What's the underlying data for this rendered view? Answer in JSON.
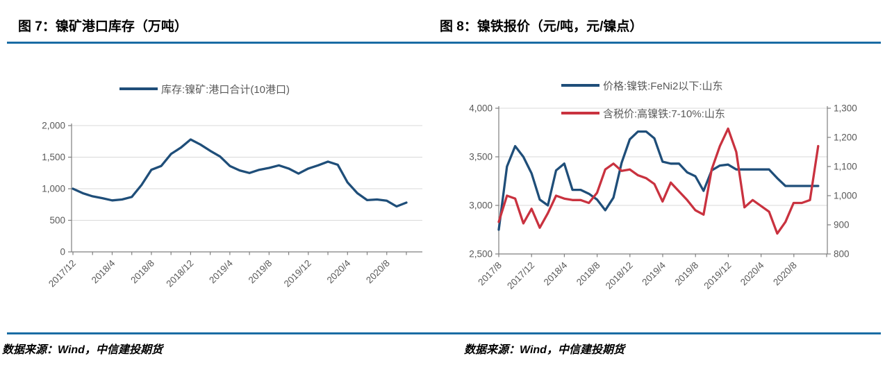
{
  "panels": [
    {
      "title": "图 7：镍矿港口库存（万吨）",
      "source": "数据来源：Wind，中信建投期货"
    },
    {
      "title": "图 8：镍铁报价（元/吨，元/镍点）",
      "source": "数据来源：Wind，中信建投期货"
    }
  ],
  "colors": {
    "rule_blue": "#1A6CA4",
    "series_blue": "#1F4E79",
    "series_red": "#C9323F",
    "grid": "#D9D9D9",
    "axis": "#7F7F7F",
    "tick_text": "#595959"
  },
  "chart_data": [
    {
      "type": "line",
      "title": "图 7：镍矿港口库存（万吨）",
      "unit": "万吨",
      "grid": true,
      "legend_position": "top",
      "x_tick_labels": [
        "2017/12",
        "2018/4",
        "2018/8",
        "2018/12",
        "2019/4",
        "2019/8",
        "2019/12",
        "2020/4",
        "2020/8"
      ],
      "y_axis": {
        "min": 0,
        "max": 2000,
        "step": 500,
        "tick_labels": [
          "0",
          "500",
          "1,000",
          "1,500",
          "2,000"
        ]
      },
      "x": [
        "2017/12",
        "2018/1",
        "2018/2",
        "2018/3",
        "2018/4",
        "2018/5",
        "2018/6",
        "2018/7",
        "2018/8",
        "2018/9",
        "2018/10",
        "2018/11",
        "2018/12",
        "2019/1",
        "2019/2",
        "2019/3",
        "2019/4",
        "2019/5",
        "2019/6",
        "2019/7",
        "2019/8",
        "2019/9",
        "2019/10",
        "2019/11",
        "2019/12",
        "2020/1",
        "2020/2",
        "2020/3",
        "2020/4",
        "2020/5",
        "2020/6",
        "2020/7",
        "2020/8",
        "2020/9",
        "2020/10"
      ],
      "series": [
        {
          "name": "库存:镍矿:港口合计(10港口)",
          "color": "#1F4E79",
          "axis": "left",
          "values": [
            1000,
            930,
            880,
            850,
            815,
            830,
            870,
            1060,
            1300,
            1360,
            1550,
            1650,
            1780,
            1700,
            1600,
            1510,
            1360,
            1290,
            1250,
            1300,
            1330,
            1370,
            1320,
            1240,
            1320,
            1370,
            1430,
            1380,
            1100,
            930,
            820,
            830,
            810,
            720,
            780
          ]
        }
      ]
    },
    {
      "type": "line",
      "title": "图 8：镍铁报价（元/吨，元/镍点）",
      "unit": "元/吨，元/镍点",
      "grid": true,
      "legend_position": "top",
      "x_tick_labels": [
        "2017/8",
        "2017/12",
        "2018/4",
        "2018/8",
        "2018/12",
        "2019/4",
        "2019/8",
        "2019/12",
        "2020/4",
        "2020/8"
      ],
      "y_axis": {
        "min": 2500,
        "max": 4000,
        "step": 500,
        "tick_labels": [
          "2,500",
          "3,000",
          "3,500",
          "4,000"
        ]
      },
      "y2_axis": {
        "min": 800,
        "max": 1300,
        "step": 100,
        "tick_labels": [
          "800",
          "900",
          "1,000",
          "1,100",
          "1,200",
          "1,300"
        ]
      },
      "x": [
        "2017/8",
        "2017/9",
        "2017/10",
        "2017/11",
        "2017/12",
        "2018/1",
        "2018/2",
        "2018/3",
        "2018/4",
        "2018/5",
        "2018/6",
        "2018/7",
        "2018/8",
        "2018/9",
        "2018/10",
        "2018/11",
        "2018/12",
        "2019/1",
        "2019/2",
        "2019/3",
        "2019/4",
        "2019/5",
        "2019/6",
        "2019/7",
        "2019/8",
        "2019/9",
        "2019/10",
        "2019/11",
        "2019/12",
        "2020/1",
        "2020/2",
        "2020/3",
        "2020/4",
        "2020/5",
        "2020/6",
        "2020/7",
        "2020/8",
        "2020/9",
        "2020/10",
        "2020/11"
      ],
      "series": [
        {
          "name": "价格:镍铁:FeNi2以下:山东",
          "color": "#1F4E79",
          "axis": "left",
          "values": [
            2750,
            3400,
            3610,
            3500,
            3330,
            3060,
            3000,
            3360,
            3430,
            3160,
            3160,
            3120,
            3060,
            2950,
            3080,
            3440,
            3680,
            3760,
            3760,
            3690,
            3450,
            3430,
            3430,
            3340,
            3300,
            3150,
            3360,
            3410,
            3420,
            3370,
            3370,
            3370,
            3370,
            3370,
            3280,
            3200,
            3200,
            3200,
            3200,
            3200
          ]
        },
        {
          "name": "含税价:高镍铁:7-10%:山东",
          "color": "#C9323F",
          "axis": "right",
          "values": [
            910,
            1000,
            990,
            905,
            955,
            890,
            940,
            1000,
            990,
            985,
            985,
            975,
            1010,
            1090,
            1110,
            1085,
            1090,
            1070,
            1060,
            1040,
            980,
            1045,
            1015,
            985,
            950,
            935,
            1090,
            1170,
            1230,
            1150,
            960,
            985,
            965,
            945,
            870,
            910,
            975,
            975,
            985,
            1170
          ]
        }
      ]
    }
  ]
}
